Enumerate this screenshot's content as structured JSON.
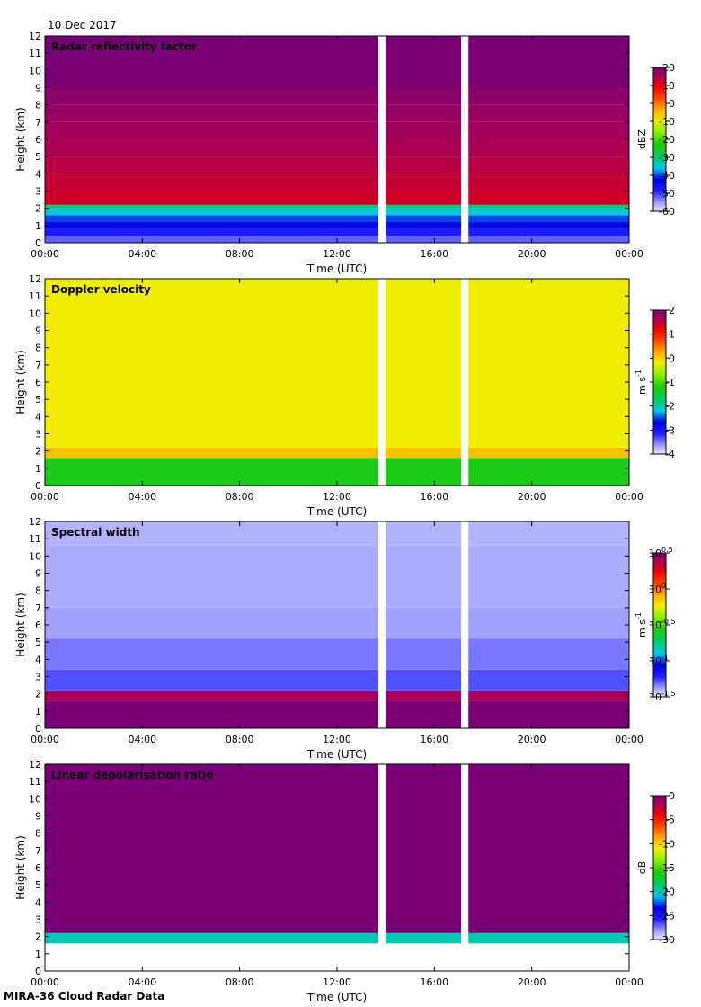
{
  "header": {
    "date": "10 Dec 2017"
  },
  "footer": {
    "caption": "MIRA-36 Cloud Radar Data"
  },
  "chart_data": [
    {
      "type": "heatmap",
      "title": "Radar reflectivity factor",
      "xlabel": "Time (UTC)",
      "ylabel": "Height (km)",
      "xlim": [
        0,
        24
      ],
      "ylim": [
        0,
        12
      ],
      "xticks": [
        "00:00",
        "04:00",
        "08:00",
        "12:00",
        "16:00",
        "20:00",
        "00:00"
      ],
      "yticks": [
        "0",
        "1",
        "2",
        "3",
        "4",
        "5",
        "6",
        "7",
        "8",
        "9",
        "10",
        "11",
        "12"
      ],
      "data_gaps_hours": [
        [
          13.7,
          14.0
        ],
        [
          17.1,
          17.4
        ]
      ],
      "layers": [
        {
          "from_km": 0.0,
          "to_km": 0.4,
          "value": -52
        },
        {
          "from_km": 0.4,
          "to_km": 0.8,
          "value": -48
        },
        {
          "from_km": 0.8,
          "to_km": 1.2,
          "value": -44
        },
        {
          "from_km": 1.2,
          "to_km": 1.6,
          "value": -40
        },
        {
          "from_km": 1.6,
          "to_km": 2.0,
          "value": -35
        },
        {
          "from_km": 2.0,
          "to_km": 2.2,
          "value": -30
        },
        {
          "from_km": 2.2,
          "to_km": 3.0,
          "value": 12
        },
        {
          "from_km": 3.0,
          "to_km": 4.0,
          "value": 13
        },
        {
          "from_km": 4.0,
          "to_km": 5.0,
          "value": 14
        },
        {
          "from_km": 5.0,
          "to_km": 6.0,
          "value": 15
        },
        {
          "from_km": 6.0,
          "to_km": 7.0,
          "value": 16
        },
        {
          "from_km": 7.0,
          "to_km": 8.0,
          "value": 17
        },
        {
          "from_km": 8.0,
          "to_km": 9.0,
          "value": 18
        },
        {
          "from_km": 9.0,
          "to_km": 12.0,
          "value": 20
        }
      ],
      "colorbar": {
        "label": "dBZ",
        "label_sup": "",
        "min": -60,
        "max": 20,
        "log": false,
        "ticks": [
          "-60",
          "-50",
          "-40",
          "-30",
          "-20",
          "-10",
          "0",
          "10",
          "20"
        ]
      }
    },
    {
      "type": "heatmap",
      "title": "Doppler velocity",
      "xlabel": "Time (UTC)",
      "ylabel": "Height (km)",
      "xlim": [
        0,
        24
      ],
      "ylim": [
        0,
        12
      ],
      "xticks": [
        "00:00",
        "04:00",
        "08:00",
        "12:00",
        "16:00",
        "20:00",
        "00:00"
      ],
      "yticks": [
        "0",
        "1",
        "2",
        "3",
        "4",
        "5",
        "6",
        "7",
        "8",
        "9",
        "10",
        "11",
        "12"
      ],
      "data_gaps_hours": [
        [
          13.7,
          14.0
        ],
        [
          17.1,
          17.4
        ]
      ],
      "layers": [
        {
          "from_km": 0.0,
          "to_km": 1.6,
          "value": -1.3
        },
        {
          "from_km": 1.6,
          "to_km": 2.2,
          "value": 0.1
        },
        {
          "from_km": 2.2,
          "to_km": 12.0,
          "value": -0.2
        }
      ],
      "colorbar": {
        "label": "m s",
        "label_sup": "-1",
        "min": -4,
        "max": 2,
        "log": false,
        "ticks": [
          "-4",
          "-3",
          "-2",
          "-1",
          "0",
          "1",
          "2"
        ]
      }
    },
    {
      "type": "heatmap",
      "title": "Spectral width",
      "xlabel": "Time (UTC)",
      "ylabel": "Height (km)",
      "xlim": [
        0,
        24
      ],
      "ylim": [
        0,
        12
      ],
      "xticks": [
        "00:00",
        "04:00",
        "08:00",
        "12:00",
        "16:00",
        "20:00",
        "00:00"
      ],
      "yticks": [
        "0",
        "1",
        "2",
        "3",
        "4",
        "5",
        "6",
        "7",
        "8",
        "9",
        "10",
        "11",
        "12"
      ],
      "data_gaps_hours": [
        [
          13.7,
          14.0
        ],
        [
          17.1,
          17.4
        ]
      ],
      "layers": [
        {
          "from_km": 0.0,
          "to_km": 1.6,
          "value": 0.5
        },
        {
          "from_km": 1.6,
          "to_km": 2.2,
          "value": 0.38
        },
        {
          "from_km": 2.2,
          "to_km": 3.4,
          "value": -1.28
        },
        {
          "from_km": 3.4,
          "to_km": 5.2,
          "value": -1.33
        },
        {
          "from_km": 5.2,
          "to_km": 7.0,
          "value": -1.38
        },
        {
          "from_km": 7.0,
          "to_km": 10.6,
          "value": -1.4
        },
        {
          "from_km": 10.6,
          "to_km": 12.0,
          "value": -1.41
        }
      ],
      "colorbar": {
        "label": "m s",
        "label_sup": "-1",
        "min": -1.5,
        "max": 0.5,
        "log": true,
        "ticks": [
          "-1.5",
          "-1",
          "-0.5",
          "0",
          "0.5"
        ]
      }
    },
    {
      "type": "heatmap",
      "title": "Linear depolarisation ratio",
      "xlabel": "Time (UTC)",
      "ylabel": "Height (km)",
      "xlim": [
        0,
        24
      ],
      "ylim": [
        0,
        12
      ],
      "xticks": [
        "00:00",
        "04:00",
        "08:00",
        "12:00",
        "16:00",
        "20:00",
        "00:00"
      ],
      "yticks": [
        "0",
        "1",
        "2",
        "3",
        "4",
        "5",
        "6",
        "7",
        "8",
        "9",
        "10",
        "11",
        "12"
      ],
      "data_gaps_hours": [
        [
          13.7,
          14.0
        ],
        [
          17.1,
          17.4
        ]
      ],
      "layers": [
        {
          "from_km": 1.6,
          "to_km": 2.2,
          "value": -20
        },
        {
          "from_km": 2.2,
          "to_km": 12.0,
          "value": 0
        }
      ],
      "colorbar": {
        "label": "dB",
        "label_sup": "",
        "min": -30,
        "max": 0,
        "log": false,
        "ticks": [
          "-30",
          "-25",
          "-20",
          "-15",
          "-10",
          "-5",
          "0"
        ]
      }
    }
  ]
}
